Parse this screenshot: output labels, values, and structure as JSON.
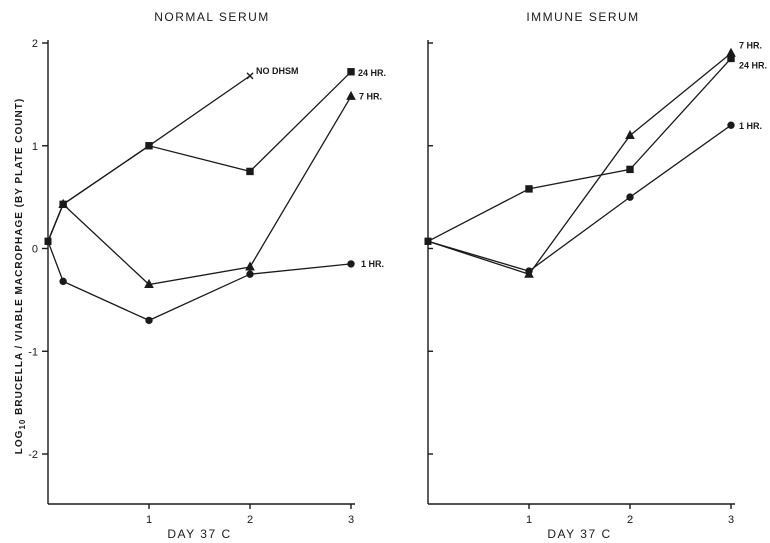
{
  "chart_data": [
    {
      "type": "line",
      "title": "NORMAL SERUM",
      "xlabel": "DAY 37 C",
      "ylabel": "LOG10 BRUCELLA / VIABLE MACROPHAGE (BY PLATE COUNT)",
      "ylabel_main": "LOG",
      "ylabel_sub": "10",
      "ylabel_rest": " BRUCELLA / VIABLE MACROPHAGE (BY PLATE COUNT)",
      "xlim": [
        0,
        3
      ],
      "ylim": [
        -2.5,
        2
      ],
      "x_ticks": [
        1,
        2,
        3
      ],
      "y_ticks": [
        2,
        1,
        0,
        -1,
        -2
      ],
      "grid": false,
      "series": [
        {
          "name": "NO DHSM",
          "marker": "x",
          "x": [
            0,
            0.15,
            1,
            2
          ],
          "y": [
            0.07,
            0.43,
            1.0,
            1.68
          ]
        },
        {
          "name": "24 HR.",
          "marker": "square",
          "x": [
            0,
            0.15,
            1,
            2,
            3
          ],
          "y": [
            0.07,
            0.43,
            1.0,
            0.75,
            1.72
          ]
        },
        {
          "name": "7 HR.",
          "marker": "triangle",
          "x": [
            0,
            0.15,
            1,
            2,
            3
          ],
          "y": [
            0.07,
            0.43,
            -0.35,
            -0.18,
            1.48
          ]
        },
        {
          "name": "1 HR.",
          "marker": "circle",
          "x": [
            0,
            0.15,
            1,
            2,
            3
          ],
          "y": [
            0.07,
            -0.32,
            -0.7,
            -0.25,
            -0.15
          ]
        }
      ]
    },
    {
      "type": "line",
      "title": "IMMUNE SERUM",
      "xlabel": "DAY 37 C",
      "xlim": [
        0,
        3
      ],
      "ylim": [
        -2.5,
        2
      ],
      "x_ticks": [
        1,
        2,
        3
      ],
      "y_ticks": [
        2,
        1,
        0,
        -1,
        -2
      ],
      "grid": false,
      "series": [
        {
          "name": "7 HR.",
          "marker": "triangle",
          "x": [
            0,
            1,
            2,
            3
          ],
          "y": [
            0.07,
            -0.25,
            1.1,
            1.9
          ]
        },
        {
          "name": "24 HR.",
          "marker": "square",
          "x": [
            0,
            1,
            2,
            3
          ],
          "y": [
            0.07,
            0.58,
            0.77,
            1.85
          ]
        },
        {
          "name": "1 HR.",
          "marker": "circle",
          "x": [
            0,
            1,
            2,
            3
          ],
          "y": [
            0.07,
            -0.22,
            0.5,
            1.2
          ]
        }
      ]
    }
  ]
}
